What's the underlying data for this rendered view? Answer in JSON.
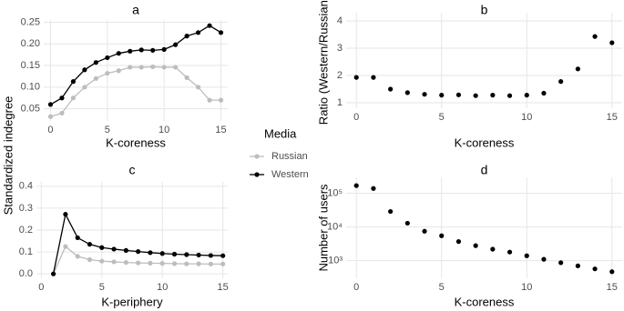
{
  "chart_data": [
    {
      "type": "line",
      "title": "a",
      "xlabel": "K-coreness",
      "ylabel": "Standardized indegree",
      "legend_title": "Media",
      "x": [
        0,
        1,
        2,
        3,
        4,
        5,
        6,
        7,
        8,
        9,
        10,
        11,
        12,
        13,
        14,
        15
      ],
      "series": [
        {
          "name": "Russian",
          "color": "#bdbdbd",
          "values": [
            0.032,
            0.04,
            0.075,
            0.1,
            0.12,
            0.132,
            0.138,
            0.146,
            0.146,
            0.147,
            0.146,
            0.146,
            0.122,
            0.1,
            0.07,
            0.07
          ]
        },
        {
          "name": "Western",
          "color": "#000000",
          "values": [
            0.06,
            0.075,
            0.113,
            0.14,
            0.157,
            0.168,
            0.178,
            0.183,
            0.186,
            0.185,
            0.187,
            0.198,
            0.218,
            0.226,
            0.242,
            0.226
          ]
        }
      ],
      "xlim": [
        -0.6,
        15.6
      ],
      "xticks": [
        0,
        5,
        10,
        15
      ],
      "ylim": [
        0.022,
        0.255
      ],
      "yticks": [
        0.05,
        {
          "value": 0.1,
          "label": "0.10"
        },
        0.15,
        {
          "value": 0.2,
          "label": "0.20"
        },
        0.25
      ],
      "grid": true
    },
    {
      "type": "scatter",
      "title": "b",
      "xlabel": "K-coreness",
      "ylabel": "Ratio (Western/Russian)",
      "x": [
        0,
        1,
        2,
        3,
        4,
        5,
        6,
        7,
        8,
        9,
        10,
        11,
        12,
        13,
        14,
        15
      ],
      "values": [
        1.93,
        1.93,
        1.5,
        1.37,
        1.31,
        1.28,
        1.29,
        1.26,
        1.28,
        1.26,
        1.28,
        1.35,
        1.78,
        2.24,
        3.43,
        3.2
      ],
      "color": "#000000",
      "xlim": [
        -0.6,
        15.6
      ],
      "xticks": [
        0,
        5,
        10,
        15
      ],
      "ylim": [
        0.8,
        4.3
      ],
      "yticks": [
        1,
        2,
        3,
        4
      ],
      "grid": true
    },
    {
      "type": "line",
      "title": "c",
      "xlabel": "K-periphery",
      "x": [
        1,
        2,
        3,
        4,
        5,
        6,
        7,
        8,
        9,
        10,
        11,
        12,
        13,
        14,
        15
      ],
      "series": [
        {
          "name": "Russian",
          "color": "#bdbdbd",
          "values": [
            0,
            0.125,
            0.08,
            0.065,
            0.058,
            0.055,
            0.052,
            0.05,
            0.049,
            0.048,
            0.047,
            0.046,
            0.046,
            0.045,
            0.045
          ]
        },
        {
          "name": "Western",
          "color": "#000000",
          "values": [
            0,
            0.272,
            0.165,
            0.135,
            0.12,
            0.113,
            0.107,
            0.102,
            0.097,
            0.093,
            0.09,
            0.088,
            0.086,
            0.084,
            0.083
          ]
        }
      ],
      "xlim": [
        -0.4,
        15.4
      ],
      "xticks": [
        0,
        5,
        10,
        15
      ],
      "ylim": [
        -0.02,
        0.42
      ],
      "yticks": [
        {
          "value": 0,
          "label": "0.0"
        },
        0.1,
        0.2,
        0.3,
        0.4
      ],
      "grid": true
    },
    {
      "type": "scatter",
      "title": "d",
      "xlabel": "K-coreness",
      "ylabel": "Number of users",
      "x": [
        0,
        1,
        2,
        3,
        4,
        5,
        6,
        7,
        8,
        9,
        10,
        11,
        12,
        13,
        14,
        15
      ],
      "values": [
        170000,
        140000,
        29000,
        13000,
        7500,
        5500,
        3700,
        2800,
        2200,
        1800,
        1400,
        1100,
        870,
        700,
        570,
        470
      ],
      "color": "#000000",
      "xlim": [
        -0.6,
        15.6
      ],
      "xticks": [
        0,
        5,
        10,
        15
      ],
      "ylim": [
        300,
        300000
      ],
      "log_y": true,
      "yticks": [
        {
          "value": 1000,
          "label": "10³"
        },
        {
          "value": 10000,
          "label": "10⁴"
        },
        {
          "value": 100000,
          "label": "10⁵"
        }
      ],
      "grid": true
    }
  ]
}
